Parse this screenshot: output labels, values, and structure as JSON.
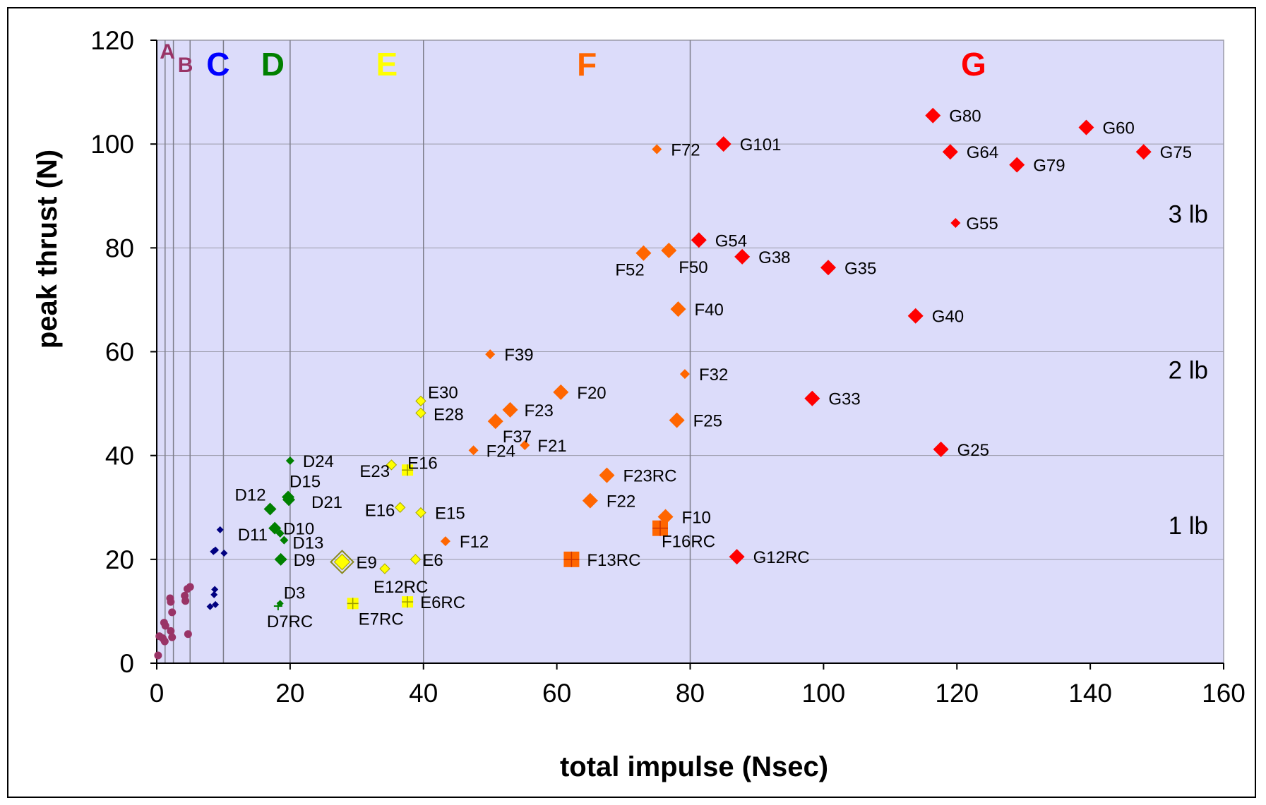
{
  "colors": {
    "plot_bg": "#dcdcfa",
    "grid": "#9a9aa8",
    "purple": "#993366",
    "navy": "#000080",
    "green": "#008000",
    "yellow": "#ffff00",
    "orange": "#ff6600",
    "red": "#ff0000",
    "blue_label": "#0000ff"
  },
  "chart_data": {
    "type": "scatter",
    "title": "",
    "xlabel": "total impulse (Nsec)",
    "ylabel": "peak thrust (N)",
    "xlim": [
      0,
      160
    ],
    "ylim": [
      0,
      120
    ],
    "x_ticks": [
      "0",
      "20",
      "40",
      "60",
      "80",
      "100",
      "120",
      "140",
      "160"
    ],
    "y_ticks": [
      "0",
      "20",
      "40",
      "60",
      "80",
      "100",
      "120"
    ],
    "grid": "horizontal",
    "class_boundaries": [
      1.25,
      2.5,
      5,
      10,
      20,
      40,
      80,
      160
    ],
    "class_labels": [
      {
        "label": "A",
        "x": 1.6,
        "color": "#993366",
        "size": "small"
      },
      {
        "label": "B",
        "x": 4.3,
        "color": "#993366",
        "size": "small"
      },
      {
        "label": "C",
        "x": 9.2,
        "color": "#0000ff",
        "size": "large"
      },
      {
        "label": "D",
        "x": 17.4,
        "color": "#008000",
        "size": "large"
      },
      {
        "label": "E",
        "x": 34.5,
        "color": "#ffff00",
        "size": "large"
      },
      {
        "label": "F",
        "x": 64.5,
        "color": "#ff6600",
        "size": "large"
      },
      {
        "label": "G",
        "x": 122.5,
        "color": "#ff0000",
        "size": "large"
      }
    ],
    "weight_labels": [
      {
        "label": "3 lb",
        "y": 86.5
      },
      {
        "label": "2 lb",
        "y": 56.5
      },
      {
        "label": "1 lb",
        "y": 26.5
      }
    ],
    "small_points": [
      {
        "x": 0.2,
        "y": 1.5,
        "color": "#993366"
      },
      {
        "x": 0.4,
        "y": 5.2,
        "color": "#993366"
      },
      {
        "x": 0.9,
        "y": 4.8,
        "color": "#993366"
      },
      {
        "x": 1.1,
        "y": 7.8,
        "color": "#993366"
      },
      {
        "x": 1.3,
        "y": 7.2,
        "color": "#993366"
      },
      {
        "x": 1.2,
        "y": 4.2,
        "color": "#993366"
      },
      {
        "x": 2.0,
        "y": 12.5,
        "color": "#993366"
      },
      {
        "x": 2.1,
        "y": 11.8,
        "color": "#993366"
      },
      {
        "x": 2.3,
        "y": 9.8,
        "color": "#993366"
      },
      {
        "x": 2.1,
        "y": 6.2,
        "color": "#993366"
      },
      {
        "x": 2.3,
        "y": 5.0,
        "color": "#993366"
      },
      {
        "x": 4.2,
        "y": 13.0,
        "color": "#993366"
      },
      {
        "x": 4.3,
        "y": 12.0,
        "color": "#993366"
      },
      {
        "x": 4.6,
        "y": 14.3,
        "color": "#993366"
      },
      {
        "x": 5.0,
        "y": 14.7,
        "color": "#993366"
      },
      {
        "x": 4.7,
        "y": 5.6,
        "color": "#993366"
      },
      {
        "x": 9.5,
        "y": 25.7,
        "color": "#000080"
      },
      {
        "x": 8.8,
        "y": 21.8,
        "color": "#000080"
      },
      {
        "x": 8.5,
        "y": 21.5,
        "color": "#000080"
      },
      {
        "x": 10.1,
        "y": 21.2,
        "color": "#000080"
      },
      {
        "x": 8.7,
        "y": 14.2,
        "color": "#000080"
      },
      {
        "x": 8.6,
        "y": 13.2,
        "color": "#000080"
      },
      {
        "x": 8.8,
        "y": 11.3,
        "color": "#000080"
      },
      {
        "x": 8.0,
        "y": 10.9,
        "color": "#000080"
      }
    ],
    "series": [
      {
        "label": "D24",
        "x": 20.0,
        "y": 39.0,
        "color": "#008000",
        "size": 6,
        "label_dx": 18,
        "label_dy": 9
      },
      {
        "label": "D15",
        "x": 19.7,
        "y": 32.0,
        "color": "#008000",
        "size": 9,
        "label_dx": 2,
        "label_dy": -14
      },
      {
        "label": "D21",
        "x": 19.8,
        "y": 31.5,
        "color": "#008000",
        "size": 9,
        "label_dx": 32,
        "label_dy": 12
      },
      {
        "label": "D12",
        "x": 17.0,
        "y": 29.7,
        "color": "#008000",
        "size": 9,
        "label_dx": -50,
        "label_dy": -12,
        "label_color": "#0000ff"
      },
      {
        "label": "D10",
        "x": 17.7,
        "y": 26.0,
        "color": "#008000",
        "size": 9,
        "label_dx": 12,
        "label_dy": 9
      },
      {
        "label": "D11",
        "x": 18.5,
        "y": 25.0,
        "color": "#008000",
        "size": 6,
        "label_dx": -60,
        "label_dy": 10,
        "label_color": "#0000ff"
      },
      {
        "label": "D13",
        "x": 19.1,
        "y": 23.7,
        "color": "#008000",
        "size": 6,
        "label_dx": 12,
        "label_dy": 12
      },
      {
        "label": "D9",
        "x": 18.6,
        "y": 20.0,
        "color": "#008000",
        "size": 9,
        "label_dx": 18,
        "label_dy": 9
      },
      {
        "label": "D3",
        "x": 18.5,
        "y": 11.5,
        "color": "#008000",
        "size": 5,
        "label_dx": 5,
        "label_dy": -7
      },
      {
        "label": "D7RC",
        "x": 18.2,
        "y": 11.0,
        "color": "#008000",
        "size": 4,
        "marker": "plus",
        "label_dx": -16,
        "label_dy": 30
      },
      {
        "label": "E30",
        "x": 39.6,
        "y": 50.5,
        "color": "#ffff00",
        "size": 7,
        "label_dx": 10,
        "label_dy": -4
      },
      {
        "label": "E28",
        "x": 39.6,
        "y": 48.2,
        "color": "#ffff00",
        "size": 7,
        "label_dx": 18,
        "label_dy": 10
      },
      {
        "label": "E23",
        "x": 35.2,
        "y": 38.2,
        "color": "#ffff00",
        "size": 7,
        "label_dx": -45,
        "label_dy": 17
      },
      {
        "label": "E16",
        "x": 37.6,
        "y": 37.2,
        "color": "#ffff00",
        "size": 8,
        "marker": "square",
        "label_dx": 0,
        "label_dy": -2
      },
      {
        "label": "E16",
        "x": 36.5,
        "y": 30.0,
        "color": "#ffff00",
        "size": 7,
        "label_dx": -50,
        "label_dy": 12
      },
      {
        "label": "E15",
        "x": 39.6,
        "y": 29.0,
        "color": "#ffff00",
        "size": 7,
        "label_dx": 20,
        "label_dy": 9
      },
      {
        "label": "E6",
        "x": 38.8,
        "y": 20.0,
        "color": "#ffff00",
        "size": 7,
        "label_dx": 10,
        "label_dy": 9
      },
      {
        "label": "E9",
        "x": 27.8,
        "y": 19.5,
        "color": "#ffff00",
        "size": 11,
        "double": true,
        "label_dx": 20,
        "label_dy": 9,
        "label_color": "#0000ff"
      },
      {
        "label": "E12RC",
        "x": 34.2,
        "y": 18.2,
        "color": "#ffff00",
        "size": 7,
        "label_dx": -16,
        "label_dy": 34
      },
      {
        "label": "E7RC",
        "x": 29.4,
        "y": 11.5,
        "color": "#ffff00",
        "size": 8,
        "marker": "square",
        "label_dx": 8,
        "label_dy": 30
      },
      {
        "label": "E6RC",
        "x": 37.6,
        "y": 11.8,
        "color": "#ffff00",
        "size": 8,
        "marker": "square",
        "label_dx": 18,
        "label_dy": 9
      },
      {
        "label": "F72",
        "x": 75.0,
        "y": 99.0,
        "color": "#ff6600",
        "size": 7,
        "label_dx": 20,
        "label_dy": 9
      },
      {
        "label": "F52",
        "x": 73.0,
        "y": 79.0,
        "color": "#ff6600",
        "size": 11,
        "label_dx": -40,
        "label_dy": 32
      },
      {
        "label": "F50",
        "x": 76.8,
        "y": 79.5,
        "color": "#ff6600",
        "size": 11,
        "label_dx": 14,
        "label_dy": 32
      },
      {
        "label": "F40",
        "x": 78.2,
        "y": 68.2,
        "color": "#ff6600",
        "size": 11,
        "label_dx": 23,
        "label_dy": 9
      },
      {
        "label": "F39",
        "x": 50.0,
        "y": 59.5,
        "color": "#ff6600",
        "size": 7,
        "label_dx": 20,
        "label_dy": 9
      },
      {
        "label": "F32",
        "x": 79.2,
        "y": 55.7,
        "color": "#ff6600",
        "size": 7,
        "label_dx": 20,
        "label_dy": 9
      },
      {
        "label": "F20",
        "x": 60.6,
        "y": 52.2,
        "color": "#ff6600",
        "size": 11,
        "label_dx": 23,
        "label_dy": 9
      },
      {
        "label": "F23",
        "x": 53.0,
        "y": 48.8,
        "color": "#ff6600",
        "size": 11,
        "label_dx": 20,
        "label_dy": 9
      },
      {
        "label": "F37",
        "x": 50.8,
        "y": 46.6,
        "color": "#ff6600",
        "size": 11,
        "label_dx": 10,
        "label_dy": 30
      },
      {
        "label": "F25",
        "x": 78.0,
        "y": 46.8,
        "color": "#ff6600",
        "size": 11,
        "label_dx": 23,
        "label_dy": 9
      },
      {
        "label": "F24",
        "x": 47.5,
        "y": 41.0,
        "color": "#ff6600",
        "size": 7,
        "label_dx": 18,
        "label_dy": 9
      },
      {
        "label": "F21",
        "x": 55.2,
        "y": 42.0,
        "color": "#ff6600",
        "size": 7,
        "label_dx": 18,
        "label_dy": 9
      },
      {
        "label": "F23RC",
        "x": 67.5,
        "y": 36.2,
        "color": "#ff6600",
        "size": 11,
        "label_dx": 23,
        "label_dy": 9
      },
      {
        "label": "F22",
        "x": 65.0,
        "y": 31.3,
        "color": "#ff6600",
        "size": 11,
        "label_dx": 23,
        "label_dy": 9
      },
      {
        "label": "F10",
        "x": 76.3,
        "y": 28.2,
        "color": "#ff6600",
        "size": 11,
        "label_dx": 23,
        "label_dy": 9
      },
      {
        "label": "F16RC",
        "x": 75.5,
        "y": 26.0,
        "color": "#ff6600",
        "size": 11,
        "marker": "square",
        "label_dx": 2,
        "label_dy": 27
      },
      {
        "label": "F12",
        "x": 43.3,
        "y": 23.5,
        "color": "#ff6600",
        "size": 7,
        "label_dx": 20,
        "label_dy": 9
      },
      {
        "label": "F13RC",
        "x": 62.2,
        "y": 20.0,
        "color": "#ff6600",
        "size": 11,
        "marker": "square",
        "label_dx": 22,
        "label_dy": 9
      },
      {
        "label": "G101",
        "x": 85.0,
        "y": 100.0,
        "color": "#ff0000",
        "size": 11,
        "label_dx": 23,
        "label_dy": 9
      },
      {
        "label": "G80",
        "x": 116.4,
        "y": 105.5,
        "color": "#ff0000",
        "size": 11,
        "label_dx": 23,
        "label_dy": 9
      },
      {
        "label": "G60",
        "x": 139.4,
        "y": 103.2,
        "color": "#ff0000",
        "size": 11,
        "label_dx": 23,
        "label_dy": 9
      },
      {
        "label": "G64",
        "x": 119.0,
        "y": 98.5,
        "color": "#ff0000",
        "size": 11,
        "label_dx": 23,
        "label_dy": 9
      },
      {
        "label": "G79",
        "x": 129.0,
        "y": 96.0,
        "color": "#ff0000",
        "size": 11,
        "label_dx": 23,
        "label_dy": 9
      },
      {
        "label": "G75",
        "x": 148.0,
        "y": 98.5,
        "color": "#ff0000",
        "size": 11,
        "label_dx": 23,
        "label_dy": 9
      },
      {
        "label": "G55",
        "x": 119.8,
        "y": 84.8,
        "color": "#ff0000",
        "size": 7,
        "label_dx": 15,
        "label_dy": 9
      },
      {
        "label": "G54",
        "x": 81.3,
        "y": 81.5,
        "color": "#ff0000",
        "size": 11,
        "label_dx": 23,
        "label_dy": 9
      },
      {
        "label": "G38",
        "x": 87.8,
        "y": 78.3,
        "color": "#ff0000",
        "size": 11,
        "label_dx": 23,
        "label_dy": 9
      },
      {
        "label": "G35",
        "x": 100.7,
        "y": 76.2,
        "color": "#ff0000",
        "size": 11,
        "label_dx": 23,
        "label_dy": 9
      },
      {
        "label": "G40",
        "x": 113.8,
        "y": 66.9,
        "color": "#ff0000",
        "size": 11,
        "label_dx": 23,
        "label_dy": 9
      },
      {
        "label": "G33",
        "x": 98.3,
        "y": 51.0,
        "color": "#ff0000",
        "size": 11,
        "label_dx": 23,
        "label_dy": 9
      },
      {
        "label": "G25",
        "x": 117.6,
        "y": 41.2,
        "color": "#ff0000",
        "size": 11,
        "label_dx": 23,
        "label_dy": 9
      },
      {
        "label": "G12RC",
        "x": 87.0,
        "y": 20.5,
        "color": "#ff0000",
        "size": 11,
        "label_dx": 23,
        "label_dy": 9
      }
    ]
  }
}
